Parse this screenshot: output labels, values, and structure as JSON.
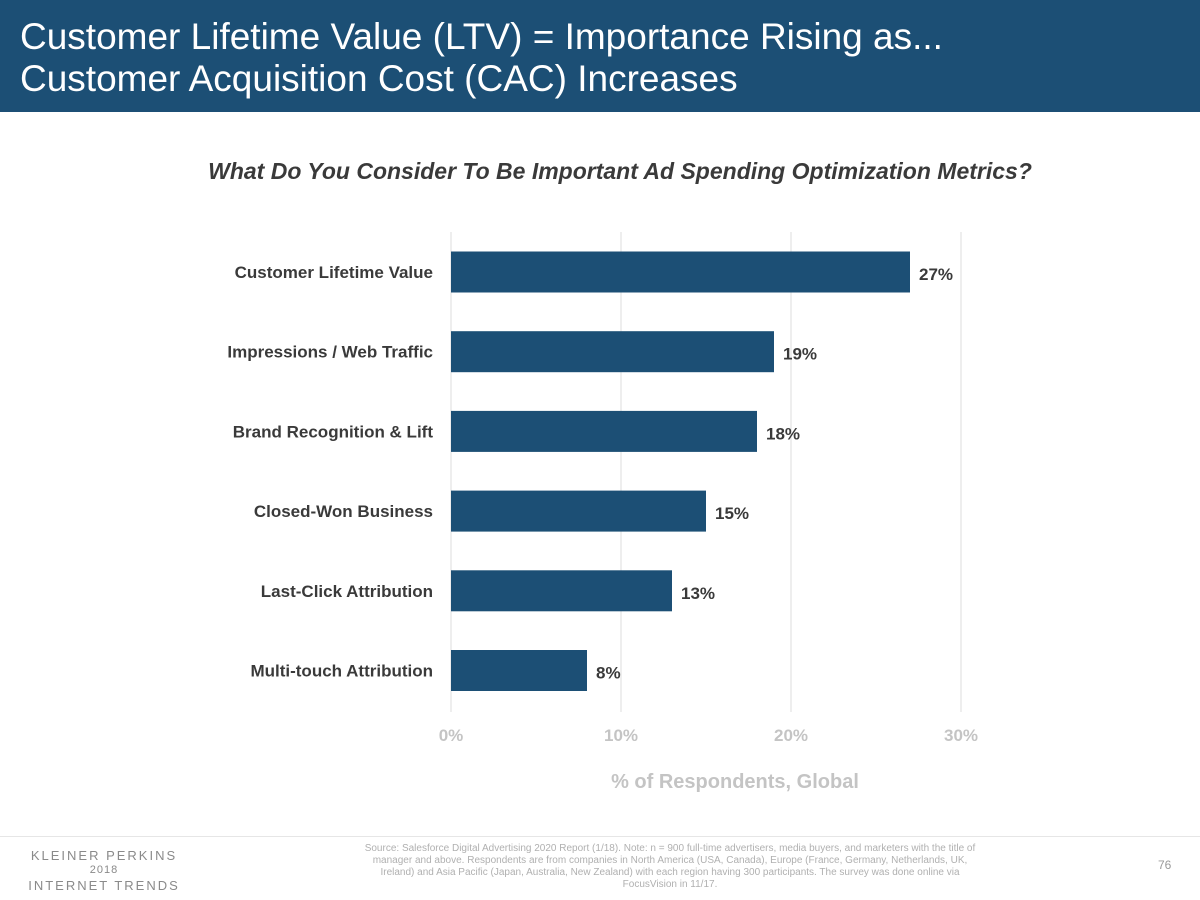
{
  "header": {
    "title_line1": "Customer Lifetime Value (LTV) = Importance Rising as...",
    "title_line2": "Customer Acquisition Cost (CAC) Increases"
  },
  "chart_data": {
    "type": "bar",
    "orientation": "horizontal",
    "title": "What Do You Consider To Be Important Ad Spending Optimization Metrics?",
    "categories": [
      "Customer Lifetime Value",
      "Impressions / Web Traffic",
      "Brand Recognition & Lift",
      "Closed-Won Business",
      "Last-Click Attribution",
      "Multi-touch Attribution"
    ],
    "values": [
      27,
      19,
      18,
      15,
      13,
      8
    ],
    "data_labels": [
      "27%",
      "19%",
      "18%",
      "15%",
      "13%",
      "8%"
    ],
    "xlabel": "% of Respondents, Global",
    "xlim": [
      0,
      30
    ],
    "xticks": [
      0,
      10,
      20,
      30
    ],
    "xtick_labels": [
      "0%",
      "10%",
      "20%",
      "30%"
    ],
    "grid": true,
    "bar_color": "#1c4f75"
  },
  "footer": {
    "logo_line1": "KLEINER PERKINS",
    "logo_line2": "2018",
    "logo_line3": "INTERNET TRENDS",
    "source": "Source: Salesforce Digital Advertising 2020 Report (1/18).  Note: n = 900 full-time advertisers, media buyers, and marketers with the title of manager and above. Respondents are from companies in North America (USA, Canada), Europe (France, Germany, Netherlands, UK, Ireland) and Asia Pacific (Japan, Australia, New Zealand) with each region having 300 participants. The survey was done online via FocusVision in 11/17.",
    "page_number": "76"
  }
}
